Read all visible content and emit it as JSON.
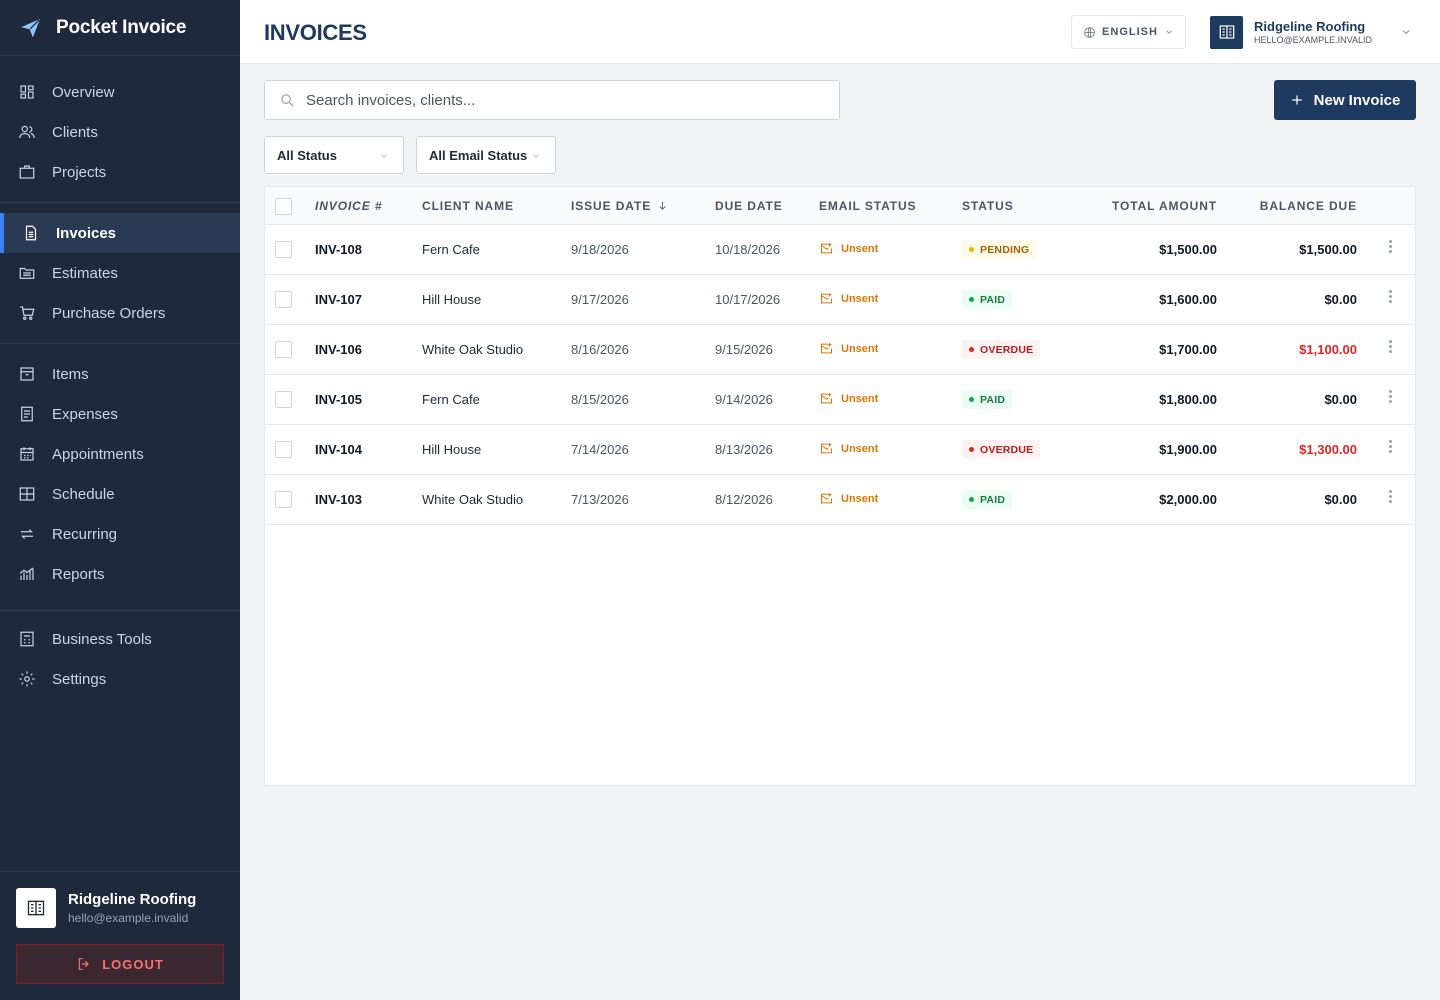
{
  "app": {
    "name": "Pocket Invoice"
  },
  "sidebar": {
    "groups": [
      [
        {
          "label": "Overview",
          "icon": "grid-icon"
        },
        {
          "label": "Clients",
          "icon": "users-icon"
        },
        {
          "label": "Projects",
          "icon": "briefcase-icon"
        }
      ],
      [
        {
          "label": "Invoices",
          "icon": "document-icon",
          "active": true
        },
        {
          "label": "Estimates",
          "icon": "folder-icon"
        },
        {
          "label": "Purchase Orders",
          "icon": "cart-icon"
        }
      ],
      [
        {
          "label": "Items",
          "icon": "archive-icon"
        },
        {
          "label": "Expenses",
          "icon": "receipt-icon"
        },
        {
          "label": "Appointments",
          "icon": "calendar-icon"
        },
        {
          "label": "Schedule",
          "icon": "table-icon"
        },
        {
          "label": "Recurring",
          "icon": "repeat-icon"
        },
        {
          "label": "Reports",
          "icon": "chart-icon"
        }
      ],
      [
        {
          "label": "Business Tools",
          "icon": "calculator-icon"
        },
        {
          "label": "Settings",
          "icon": "gear-icon"
        }
      ]
    ],
    "user": {
      "name": "Ridgeline Roofing",
      "email": "hello@example.invalid"
    },
    "logout_label": "LOGOUT"
  },
  "header": {
    "title": "INVOICES",
    "language": "ENGLISH",
    "account": {
      "name": "Ridgeline Roofing",
      "email": "HELLO@EXAMPLE.INVALID"
    }
  },
  "toolbar": {
    "search_placeholder": "Search invoices, clients...",
    "new_invoice_label": "New Invoice",
    "filters": {
      "status": "All Status",
      "email_status": "All Email Status"
    }
  },
  "table": {
    "columns": {
      "invoice": "INVOICE #",
      "client": "CLIENT NAME",
      "issue_date": "ISSUE DATE",
      "due_date": "DUE DATE",
      "email_status": "EMAIL STATUS",
      "status": "STATUS",
      "total": "TOTAL AMOUNT",
      "balance": "BALANCE DUE"
    },
    "rows": [
      {
        "invoice": "INV-108",
        "client": "Fern Cafe",
        "issue_date": "9/18/2026",
        "due_date": "10/18/2026",
        "email_status": "Unsent",
        "status": "PENDING",
        "total": "$1,500.00",
        "balance": "$1,500.00",
        "balance_red": false
      },
      {
        "invoice": "INV-107",
        "client": "Hill House",
        "issue_date": "9/17/2026",
        "due_date": "10/17/2026",
        "email_status": "Unsent",
        "status": "PAID",
        "total": "$1,600.00",
        "balance": "$0.00",
        "balance_red": false
      },
      {
        "invoice": "INV-106",
        "client": "White Oak Studio",
        "issue_date": "8/16/2026",
        "due_date": "9/15/2026",
        "email_status": "Unsent",
        "status": "OVERDUE",
        "total": "$1,700.00",
        "balance": "$1,100.00",
        "balance_red": true
      },
      {
        "invoice": "INV-105",
        "client": "Fern Cafe",
        "issue_date": "8/15/2026",
        "due_date": "9/14/2026",
        "email_status": "Unsent",
        "status": "PAID",
        "total": "$1,800.00",
        "balance": "$0.00",
        "balance_red": false
      },
      {
        "invoice": "INV-104",
        "client": "Hill House",
        "issue_date": "7/14/2026",
        "due_date": "8/13/2026",
        "email_status": "Unsent",
        "status": "OVERDUE",
        "total": "$1,900.00",
        "balance": "$1,300.00",
        "balance_red": true
      },
      {
        "invoice": "INV-103",
        "client": "White Oak Studio",
        "issue_date": "7/13/2026",
        "due_date": "8/12/2026",
        "email_status": "Unsent",
        "status": "PAID",
        "total": "$2,000.00",
        "balance": "$0.00",
        "balance_red": false
      }
    ]
  },
  "colors": {
    "sidebar_bg": "#1e293b",
    "accent": "#1e3a5f",
    "active_indicator": "#3b82f6",
    "pending": "#a16207",
    "paid": "#15803d",
    "overdue": "#dc2626",
    "unsent": "#d97706"
  }
}
